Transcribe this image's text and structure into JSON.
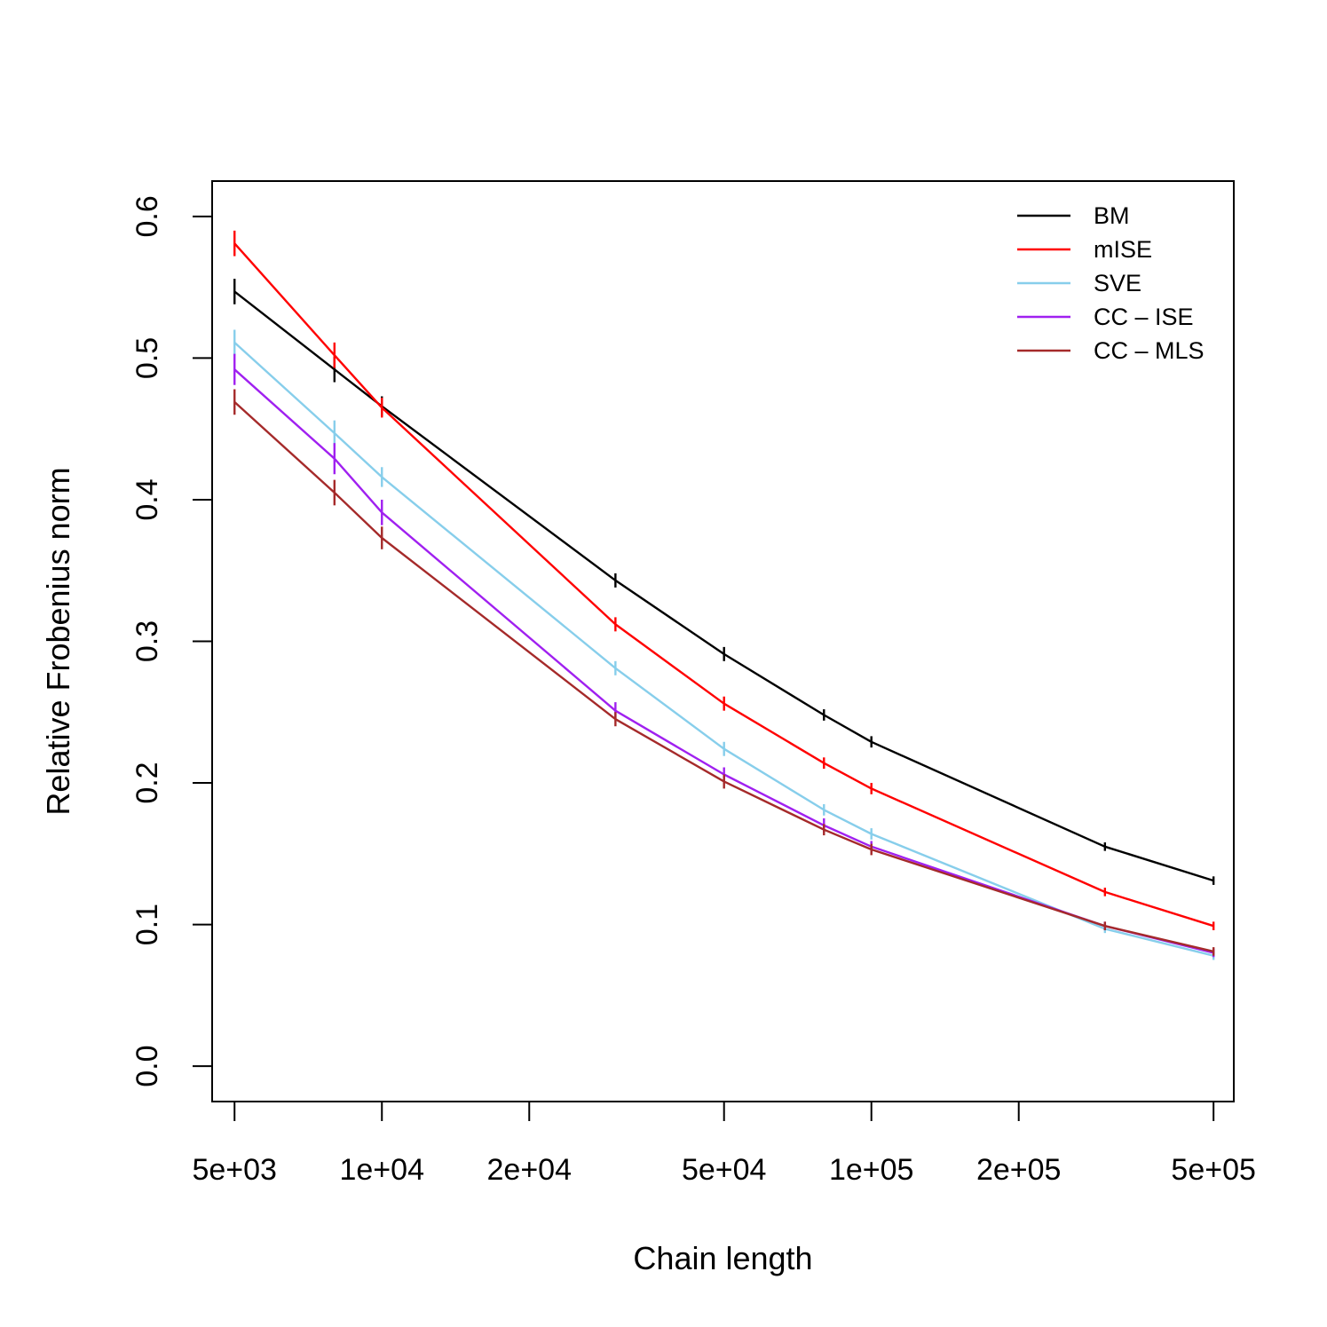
{
  "chart_data": {
    "type": "line",
    "title": "",
    "xlabel": "Chain length",
    "ylabel": "Relative Frobenius norm",
    "x_scale": "log",
    "xlim": [
      4500,
      550000
    ],
    "ylim": [
      -0.025,
      0.625
    ],
    "x_ticks": [
      {
        "value": 5000,
        "label": "5e+03"
      },
      {
        "value": 10000,
        "label": "1e+04"
      },
      {
        "value": 20000,
        "label": "2e+04"
      },
      {
        "value": 50000,
        "label": "5e+04"
      },
      {
        "value": 100000,
        "label": "1e+05"
      },
      {
        "value": 200000,
        "label": "2e+05"
      },
      {
        "value": 500000,
        "label": "5e+05"
      }
    ],
    "y_ticks": [
      {
        "value": 0.0,
        "label": "0.0"
      },
      {
        "value": 0.1,
        "label": "0.1"
      },
      {
        "value": 0.2,
        "label": "0.2"
      },
      {
        "value": 0.3,
        "label": "0.3"
      },
      {
        "value": 0.4,
        "label": "0.4"
      },
      {
        "value": 0.5,
        "label": "0.5"
      },
      {
        "value": 0.6,
        "label": "0.6"
      }
    ],
    "grid": false,
    "legend_position": "top-right",
    "x": [
      5000,
      8000,
      10000,
      30000,
      50000,
      80000,
      100000,
      300000,
      500000
    ],
    "series": [
      {
        "name": "BM",
        "color": "#000000",
        "values": [
          0.547,
          0.492,
          0.466,
          0.343,
          0.291,
          0.248,
          0.229,
          0.155,
          0.131
        ],
        "errors": [
          0.009,
          0.009,
          0.007,
          0.005,
          0.005,
          0.004,
          0.004,
          0.003,
          0.003
        ]
      },
      {
        "name": "mISE",
        "color": "#ff0000",
        "values": [
          0.581,
          0.502,
          0.465,
          0.312,
          0.256,
          0.214,
          0.196,
          0.123,
          0.099
        ],
        "errors": [
          0.009,
          0.009,
          0.007,
          0.005,
          0.005,
          0.004,
          0.004,
          0.003,
          0.003
        ]
      },
      {
        "name": "SVE",
        "color": "#87ceeb",
        "values": [
          0.511,
          0.447,
          0.416,
          0.281,
          0.224,
          0.181,
          0.164,
          0.097,
          0.078
        ],
        "errors": [
          0.009,
          0.009,
          0.007,
          0.005,
          0.005,
          0.004,
          0.004,
          0.003,
          0.003
        ]
      },
      {
        "name": "CC – ISE",
        "color": "#a020f0",
        "values": [
          0.492,
          0.429,
          0.391,
          0.251,
          0.206,
          0.17,
          0.155,
          0.099,
          0.08
        ],
        "errors": [
          0.011,
          0.011,
          0.009,
          0.006,
          0.005,
          0.005,
          0.004,
          0.003,
          0.003
        ]
      },
      {
        "name": "CC – MLS",
        "color": "#a52a2a",
        "values": [
          0.469,
          0.405,
          0.373,
          0.245,
          0.201,
          0.167,
          0.153,
          0.099,
          0.081
        ],
        "errors": [
          0.009,
          0.009,
          0.008,
          0.005,
          0.005,
          0.004,
          0.004,
          0.003,
          0.003
        ]
      }
    ]
  }
}
